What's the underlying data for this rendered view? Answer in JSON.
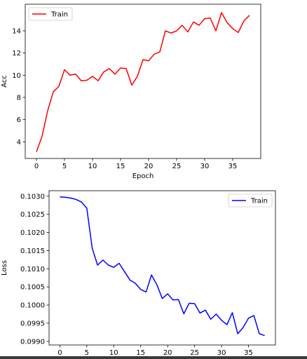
{
  "chart_data": [
    {
      "type": "line",
      "xlabel": "Epoch",
      "ylabel": "Acc",
      "xlim": [
        -2,
        40
      ],
      "ylim": [
        2.5,
        16.4
      ],
      "xticks": [
        0,
        5,
        10,
        15,
        20,
        25,
        30,
        35
      ],
      "yticks": [
        4,
        6,
        8,
        10,
        12,
        14
      ],
      "ytick_labels": [
        "4",
        "6",
        "8",
        "10",
        "12",
        "14"
      ],
      "grid": false,
      "legend_position": "upper-left",
      "series": [
        {
          "name": "Train",
          "color": "#ff0000",
          "x": [
            0,
            1,
            2,
            3,
            4,
            5,
            6,
            7,
            8,
            9,
            10,
            11,
            12,
            13,
            14,
            15,
            16,
            17,
            18,
            19,
            20,
            21,
            22,
            23,
            24,
            25,
            26,
            27,
            28,
            29,
            30,
            31,
            32,
            33,
            34,
            35,
            36,
            37,
            38
          ],
          "y": [
            3.1,
            4.5,
            6.8,
            8.5,
            9.0,
            10.5,
            10.0,
            10.1,
            9.5,
            9.55,
            9.9,
            9.5,
            10.3,
            10.6,
            10.1,
            10.65,
            10.6,
            9.1,
            9.9,
            11.4,
            11.3,
            11.9,
            12.1,
            14.0,
            13.8,
            14.0,
            14.5,
            13.9,
            14.8,
            14.5,
            15.1,
            15.15,
            14.0,
            15.65,
            14.75,
            14.2,
            13.85,
            14.9,
            15.4
          ]
        }
      ]
    },
    {
      "type": "line",
      "xlabel": "",
      "ylabel": "Loss",
      "xlim": [
        -2,
        40
      ],
      "ylim": [
        0.0989,
        0.10315
      ],
      "xticks": [
        0,
        5,
        10,
        15,
        20,
        25,
        30,
        35
      ],
      "yticks": [
        0.099,
        0.0995,
        0.1,
        0.1005,
        0.101,
        0.1015,
        0.102,
        0.1025,
        0.103
      ],
      "ytick_labels": [
        "0.0990",
        "0.0995",
        "0.1000",
        "0.1005",
        "0.1010",
        "0.1015",
        "0.1020",
        "0.1025",
        "0.1030"
      ],
      "grid": false,
      "legend_position": "upper-right",
      "series": [
        {
          "name": "Train",
          "color": "#0000ff",
          "x": [
            0,
            1,
            2,
            3,
            4,
            5,
            6,
            7,
            8,
            9,
            10,
            11,
            12,
            13,
            14,
            15,
            16,
            17,
            18,
            19,
            20,
            21,
            22,
            23,
            24,
            25,
            26,
            27,
            28,
            29,
            30,
            31,
            32,
            33,
            34,
            35,
            36,
            37,
            38
          ],
          "y": [
            0.10298,
            0.10297,
            0.10295,
            0.10291,
            0.10284,
            0.10267,
            0.10157,
            0.1011,
            0.10124,
            0.1011,
            0.10104,
            0.10115,
            0.10092,
            0.10069,
            0.1006,
            0.10043,
            0.10036,
            0.10083,
            0.10056,
            0.10018,
            0.10031,
            0.10014,
            0.10015,
            0.09976,
            0.10005,
            0.10004,
            0.09978,
            0.09986,
            0.09961,
            0.09975,
            0.09958,
            0.09946,
            0.09979,
            0.09921,
            0.09938,
            0.09964,
            0.09971,
            0.09921,
            0.09916
          ]
        }
      ]
    }
  ]
}
